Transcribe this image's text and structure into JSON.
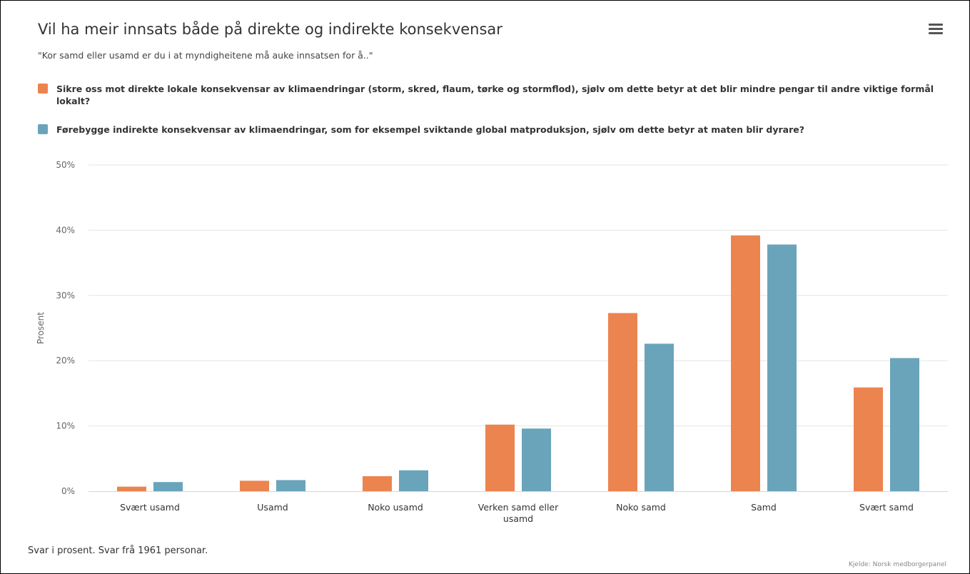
{
  "title": "Vil ha meir innsats både på direkte og indirekte konsekvensar",
  "subtitle": "\"Kor samd eller usamd er du i at myndigheitene må auke innsatsen for å..\"",
  "menu_icon": "hamburger-menu-icon",
  "caption": "Svar i prosent. Svar frå 1961 personar.",
  "credits": "Kjelde: Norsk medborgerpanel",
  "colors": {
    "series1": "#ec8450",
    "series2": "#6aa4bb",
    "grid": "#e6e6e6",
    "axis": "#ccd6eb"
  },
  "chart_data": {
    "type": "bar",
    "title": "Vil ha meir innsats både på direkte og indirekte konsekvensar",
    "subtitle": "\"Kor samd eller usamd er du i at myndigheitene må auke innsatsen for å..\"",
    "ylabel": "Prosent",
    "xlabel": "",
    "ylim": [
      0,
      50
    ],
    "yticks": [
      "0%",
      "10%",
      "20%",
      "30%",
      "40%",
      "50%"
    ],
    "grid": true,
    "legend_position": "top",
    "categories": [
      "Svært usamd",
      "Usamd",
      "Noko usamd",
      "Verken samd eller usamd",
      "Noko samd",
      "Samd",
      "Svært samd"
    ],
    "series": [
      {
        "name": "Sikre oss mot direkte lokale konsekvensar av klimaendringar (storm, skred, flaum, tørke og stormflod), sjølv om dette betyr at det blir mindre pengar til andre viktige formål lokalt?",
        "color": "#ec8450",
        "values": [
          0.7,
          1.6,
          2.3,
          10.2,
          27.3,
          39.2,
          15.9
        ]
      },
      {
        "name": "Førebygge indirekte konsekvensar av klimaendringar, som for eksempel sviktande global matproduksjon, sjølv om dette betyr at maten blir dyrare?",
        "color": "#6aa4bb",
        "values": [
          1.4,
          1.7,
          3.2,
          9.6,
          22.6,
          37.8,
          20.4
        ]
      }
    ]
  }
}
